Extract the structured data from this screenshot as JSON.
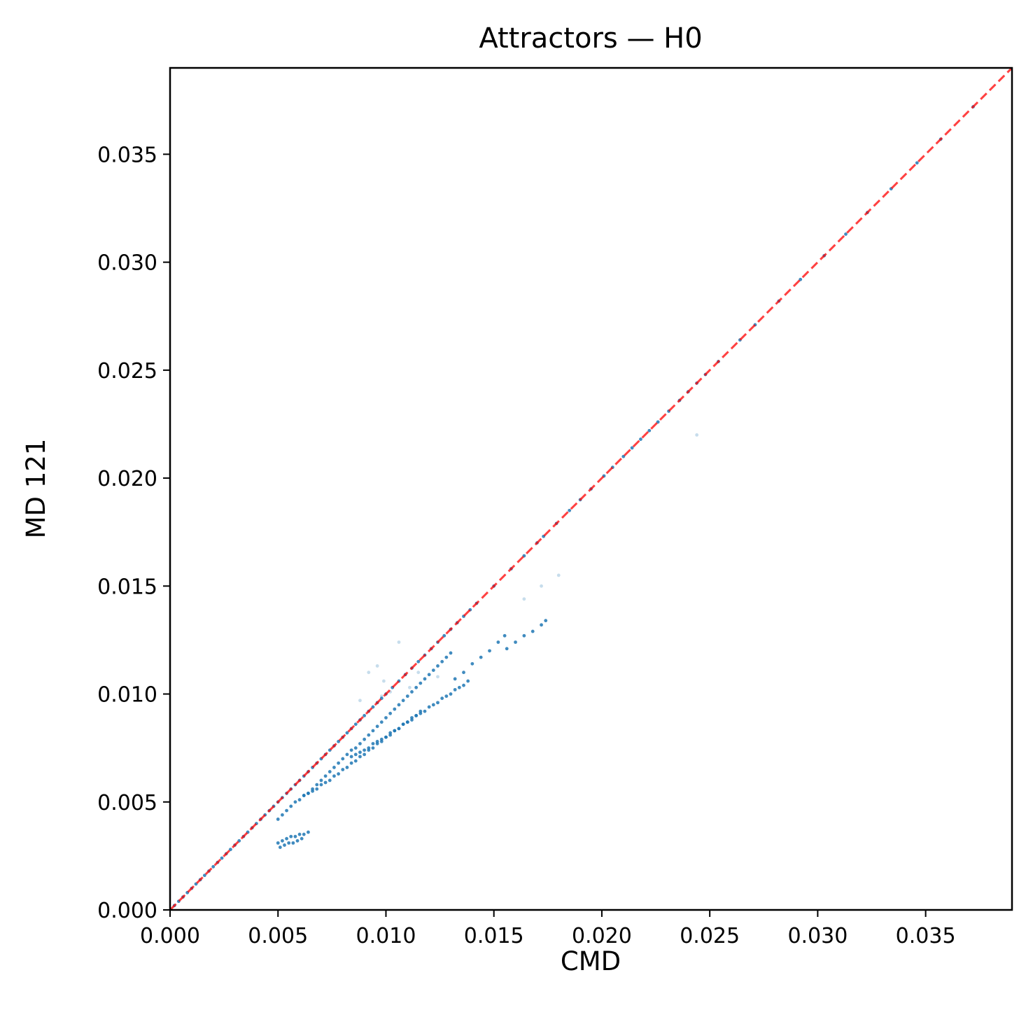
{
  "chart_data": {
    "type": "scatter",
    "title": "Attractors — H0",
    "xlabel": "CMD",
    "ylabel": "MD 121",
    "xlim": [
      0,
      0.039
    ],
    "ylim": [
      0,
      0.039
    ],
    "xticks": [
      "0.000",
      "0.005",
      "0.010",
      "0.015",
      "0.020",
      "0.025",
      "0.030",
      "0.035"
    ],
    "yticks": [
      "0.000",
      "0.005",
      "0.010",
      "0.015",
      "0.020",
      "0.025",
      "0.030",
      "0.035"
    ],
    "grid": false,
    "legend": "none",
    "colors": {
      "points": "#1f77b4",
      "reference_line": "#ff0000"
    },
    "reference_line": {
      "from": [
        0,
        0
      ],
      "to": [
        0.039,
        0.039
      ],
      "style": "dashed"
    },
    "series": [
      {
        "x": [
          0.0002,
          0.0004,
          0.0006,
          0.0008,
          0.001,
          0.0012,
          0.0014,
          0.0016,
          0.0018,
          0.002,
          0.0022,
          0.0024,
          0.0026,
          0.0028,
          0.003,
          0.0032,
          0.0034,
          0.0036,
          0.0038,
          0.004,
          0.0042,
          0.0044,
          0.0046,
          0.0048,
          0.005,
          0.0052,
          0.0054,
          0.0056,
          0.0058,
          0.006,
          0.0062,
          0.0064,
          0.0066,
          0.0068,
          0.007,
          0.0072,
          0.0074,
          0.0076,
          0.0078,
          0.008,
          0.0082,
          0.0084,
          0.0086,
          0.0088,
          0.009,
          0.0092,
          0.0094,
          0.0096,
          0.0098,
          0.01,
          0.0103,
          0.0106,
          0.0109,
          0.0112,
          0.0115,
          0.0118,
          0.0121,
          0.0124,
          0.0127,
          0.013,
          0.0133,
          0.0136,
          0.0139,
          0.0142,
          0.015,
          0.0158,
          0.0164,
          0.017,
          0.0173,
          0.0179,
          0.0185,
          0.019,
          0.0195,
          0.0201,
          0.0205,
          0.021,
          0.0214,
          0.0218,
          0.0222,
          0.0226,
          0.0231,
          0.0236,
          0.024,
          0.0244,
          0.0248,
          0.0254,
          0.0264,
          0.0271,
          0.0282,
          0.0292,
          0.0303,
          0.0313,
          0.0323,
          0.0334,
          0.0346,
          0.0357,
          0.0372
        ],
        "y": [
          0.0002,
          0.0004,
          0.0006,
          0.0008,
          0.001,
          0.0012,
          0.0014,
          0.0016,
          0.0018,
          0.002,
          0.0022,
          0.0024,
          0.0026,
          0.0028,
          0.003,
          0.0032,
          0.0034,
          0.0036,
          0.0038,
          0.004,
          0.0042,
          0.0044,
          0.0046,
          0.0048,
          0.005,
          0.0052,
          0.0054,
          0.0056,
          0.0058,
          0.006,
          0.0062,
          0.0064,
          0.0066,
          0.0068,
          0.007,
          0.0072,
          0.0074,
          0.0076,
          0.0078,
          0.008,
          0.0082,
          0.0084,
          0.0086,
          0.0088,
          0.009,
          0.0092,
          0.0094,
          0.0096,
          0.0098,
          0.01,
          0.0103,
          0.0106,
          0.0109,
          0.0112,
          0.0115,
          0.0118,
          0.0121,
          0.0124,
          0.0127,
          0.013,
          0.0133,
          0.0136,
          0.0139,
          0.0142,
          0.015,
          0.0158,
          0.0164,
          0.017,
          0.0173,
          0.0179,
          0.0185,
          0.019,
          0.0195,
          0.0201,
          0.0205,
          0.021,
          0.0214,
          0.0218,
          0.0222,
          0.0226,
          0.0231,
          0.0236,
          0.024,
          0.0244,
          0.0248,
          0.0254,
          0.0264,
          0.0271,
          0.0282,
          0.0292,
          0.0303,
          0.0313,
          0.0323,
          0.0334,
          0.0346,
          0.0357,
          0.0372
        ],
        "opacity": 0.85
      },
      {
        "x": [
          0.005,
          0.0052,
          0.0054,
          0.0056,
          0.0058,
          0.006,
          0.0062,
          0.0064,
          0.0066,
          0.0068,
          0.007,
          0.0072,
          0.0074,
          0.0076,
          0.0078,
          0.008,
          0.0082,
          0.0084,
          0.0086,
          0.0088,
          0.009,
          0.0092,
          0.0094,
          0.0096,
          0.0098,
          0.01,
          0.0102,
          0.0104,
          0.0106,
          0.0108,
          0.011,
          0.0112,
          0.0114,
          0.0116,
          0.0118,
          0.012,
          0.0122,
          0.0124,
          0.0126,
          0.0128,
          0.013
        ],
        "y": [
          0.0042,
          0.0044,
          0.0046,
          0.0048,
          0.005,
          0.0051,
          0.0053,
          0.0054,
          0.0056,
          0.0058,
          0.006,
          0.0062,
          0.0064,
          0.0066,
          0.0068,
          0.007,
          0.0072,
          0.0074,
          0.0075,
          0.0077,
          0.0079,
          0.0081,
          0.0083,
          0.0085,
          0.0087,
          0.0089,
          0.0091,
          0.0093,
          0.0095,
          0.0097,
          0.0099,
          0.0101,
          0.0103,
          0.0105,
          0.0107,
          0.0109,
          0.0111,
          0.0113,
          0.0115,
          0.0117,
          0.0119
        ],
        "opacity": 0.85
      },
      {
        "x": [
          0.0062,
          0.0064,
          0.0066,
          0.0068,
          0.007,
          0.0072,
          0.0074,
          0.0076,
          0.0078,
          0.008,
          0.0082,
          0.0084,
          0.0086,
          0.0088,
          0.009,
          0.0092,
          0.0094,
          0.0096,
          0.0098,
          0.01,
          0.0102,
          0.0104,
          0.0106,
          0.0108,
          0.011,
          0.0112,
          0.0114,
          0.0116,
          0.0132,
          0.0136,
          0.014,
          0.0144,
          0.0148,
          0.0152,
          0.0155
        ],
        "y": [
          0.0053,
          0.0054,
          0.0055,
          0.0056,
          0.0058,
          0.0059,
          0.006,
          0.0062,
          0.0063,
          0.0065,
          0.0066,
          0.0068,
          0.0069,
          0.0071,
          0.0072,
          0.0074,
          0.0075,
          0.0077,
          0.0078,
          0.008,
          0.0081,
          0.0083,
          0.0084,
          0.0086,
          0.0087,
          0.0089,
          0.009,
          0.0092,
          0.0107,
          0.011,
          0.0114,
          0.0117,
          0.012,
          0.0124,
          0.0127
        ],
        "opacity": 0.85
      },
      {
        "x": [
          0.0084,
          0.0086,
          0.0088,
          0.009,
          0.0092,
          0.0094,
          0.0096,
          0.0098,
          0.01,
          0.0102,
          0.0104,
          0.0106,
          0.0108,
          0.011,
          0.0112,
          0.0114,
          0.0116,
          0.0118,
          0.012,
          0.0122,
          0.0124,
          0.0126,
          0.0128,
          0.013,
          0.0132,
          0.0134,
          0.0136,
          0.0138,
          0.0156,
          0.016,
          0.0164,
          0.0168,
          0.0172,
          0.0174
        ],
        "y": [
          0.0071,
          0.0072,
          0.0073,
          0.0074,
          0.0075,
          0.0077,
          0.0078,
          0.0079,
          0.008,
          0.0082,
          0.0083,
          0.0084,
          0.0086,
          0.0087,
          0.0088,
          0.009,
          0.0091,
          0.0092,
          0.0094,
          0.0095,
          0.0096,
          0.0098,
          0.0099,
          0.01,
          0.0102,
          0.0103,
          0.0104,
          0.0106,
          0.0121,
          0.0124,
          0.0127,
          0.0129,
          0.0132,
          0.0134
        ],
        "opacity": 0.85
      },
      {
        "x": [
          0.005,
          0.0052,
          0.0054,
          0.0056,
          0.0058,
          0.006,
          0.0062,
          0.0064,
          0.0051,
          0.0053,
          0.0055,
          0.0057,
          0.0059,
          0.0061
        ],
        "y": [
          0.0031,
          0.0032,
          0.0033,
          0.0034,
          0.0034,
          0.0035,
          0.0035,
          0.0036,
          0.0029,
          0.003,
          0.0031,
          0.0031,
          0.0032,
          0.0033
        ],
        "opacity": 0.85
      },
      {
        "x": [
          0.0244,
          0.018,
          0.0172,
          0.0164,
          0.0106,
          0.0096,
          0.0092,
          0.0099,
          0.0102,
          0.0124,
          0.0111,
          0.0115,
          0.0098,
          0.0088
        ],
        "y": [
          0.022,
          0.0155,
          0.015,
          0.0144,
          0.0124,
          0.0113,
          0.011,
          0.0106,
          0.0101,
          0.0108,
          0.0103,
          0.011,
          0.0099,
          0.0097
        ],
        "opacity": 0.25
      }
    ]
  }
}
